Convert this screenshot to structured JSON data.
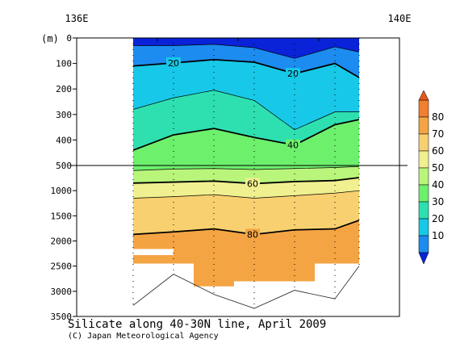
{
  "chart_data": {
    "type": "heatmap",
    "title": "Silicate along 40-30N line, April 2009",
    "credit": "(C) Japan Meteorological Agency",
    "x_ticks": [
      "136E",
      "140E"
    ],
    "x_tick_lon": [
      136,
      140
    ],
    "y_unit_label": "(m)",
    "y_ticks_upper": [
      0,
      100,
      200,
      300,
      400,
      500
    ],
    "y_ticks_lower": [
      500,
      1000,
      1500,
      2000,
      2500,
      3000,
      3500
    ],
    "upper_range_m": [
      0,
      500
    ],
    "lower_range_m": [
      500,
      3500
    ],
    "station_lon": [
      136.7,
      137.2,
      137.7,
      138.2,
      138.7,
      139.2,
      139.5
    ],
    "station_max_depth_m": [
      3280,
      2660,
      3060,
      3340,
      2980,
      3150,
      2500
    ],
    "bottom_depth_m": [
      3280,
      2660,
      3060,
      3340,
      2980,
      3150,
      2500
    ],
    "data_max_depth_m": [
      2450,
      2450,
      2900,
      2800,
      2800,
      2450,
      2450
    ],
    "data_gap": {
      "lon_range": [
        136.7,
        137.2
      ],
      "depth_range_m": [
        2160,
        2280
      ]
    },
    "contour_levels": [
      10,
      20,
      30,
      40,
      50,
      60,
      70,
      80
    ],
    "labeled_levels": [
      20,
      40,
      60,
      80
    ],
    "contour_labels": [
      "20",
      "20",
      "40",
      "60",
      "80"
    ],
    "isopleths": [
      {
        "level": 10,
        "depth_m": [
          30,
          30,
          25,
          38,
          80,
          35,
          55
        ]
      },
      {
        "level": 20,
        "depth_m": [
          110,
          98,
          85,
          95,
          140,
          100,
          155
        ]
      },
      {
        "level": 30,
        "depth_m": [
          280,
          235,
          205,
          245,
          360,
          290,
          290
        ]
      },
      {
        "level": 40,
        "depth_m": [
          440,
          380,
          355,
          390,
          420,
          340,
          320
        ]
      },
      {
        "level": 50,
        "depth_m": [
          600,
          570,
          560,
          580,
          560,
          540,
          520
        ]
      },
      {
        "level": 60,
        "depth_m": [
          850,
          830,
          810,
          860,
          820,
          800,
          740
        ]
      },
      {
        "level": 70,
        "depth_m": [
          1150,
          1120,
          1080,
          1150,
          1100,
          1050,
          1000
        ]
      },
      {
        "level": 80,
        "depth_m": [
          1870,
          1820,
          1760,
          1870,
          1780,
          1760,
          1590
        ]
      }
    ],
    "colorbar": {
      "ticks": [
        10,
        20,
        30,
        40,
        50,
        60,
        70,
        80
      ],
      "colors": [
        "#0a22d8",
        "#1c8cf0",
        "#17c8e8",
        "#2ee0b0",
        "#6df06c",
        "#b8f57a",
        "#f0f090",
        "#f8d070",
        "#f5a444",
        "#f07f30",
        "#e8581c"
      ]
    }
  }
}
